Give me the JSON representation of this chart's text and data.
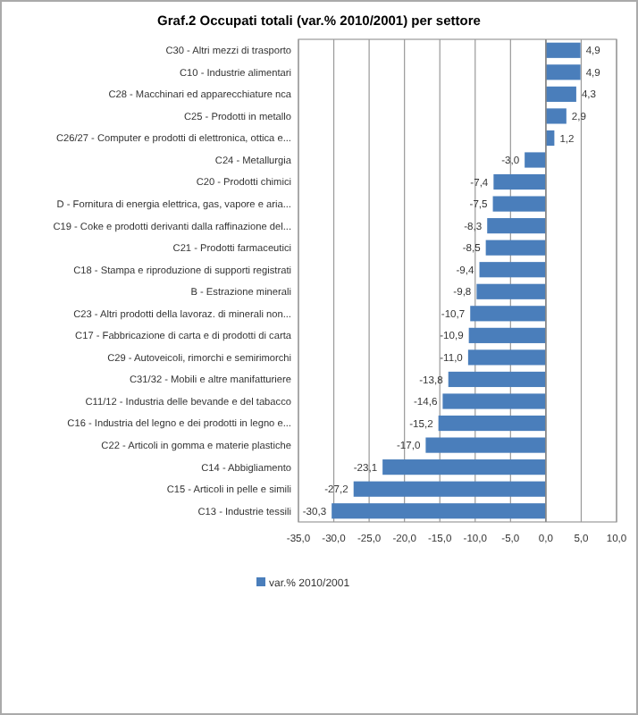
{
  "chart_data": {
    "type": "bar",
    "orientation": "horizontal",
    "title": "Graf.2 Occupati totali (var.% 2010/2001) per settore",
    "categories": [
      "C30 - Altri mezzi di trasporto",
      "C10 - Industrie alimentari",
      "C28 - Macchinari ed apparecchiature nca",
      "C25 - Prodotti in metallo",
      "C26/27 - Computer e prodotti di elettronica, ottica e...",
      "C24 - Metallurgia",
      "C20 - Prodotti chimici",
      "D - Fornitura di energia elettrica, gas, vapore e aria...",
      "C19 - Coke e prodotti derivanti dalla raffinazione del...",
      "C21 - Prodotti farmaceutici",
      "C18 - Stampa e riproduzione di supporti registrati",
      "B - Estrazione minerali",
      "C23 - Altri prodotti della lavoraz. di minerali non...",
      "C17 - Fabbricazione di carta e di prodotti di carta",
      "C29 - Autoveicoli, rimorchi e semirimorchi",
      "C31/32 - Mobili e altre manifatturiere",
      "C11/12 - Industria delle bevande e del tabacco",
      "C16 - Industria del legno e dei prodotti in legno e...",
      "C22 - Articoli in gomma e materie plastiche",
      "C14 - Abbigliamento",
      "C15 - Articoli in pelle e simili",
      "C13 - Industrie tessili"
    ],
    "series": [
      {
        "name": "var.% 2010/2001",
        "color": "#4a7ebb",
        "values": [
          4.9,
          4.9,
          4.3,
          2.9,
          1.2,
          -3.0,
          -7.4,
          -7.5,
          -8.3,
          -8.5,
          -9.4,
          -9.8,
          -10.7,
          -10.9,
          -11.0,
          -13.8,
          -14.6,
          -15.2,
          -17.0,
          -23.1,
          -27.2,
          -30.3
        ],
        "value_labels": [
          "4,9",
          "4,9",
          "4,3",
          "2,9",
          "1,2",
          "-3,0",
          "-7,4",
          "-7,5",
          "-8,3",
          "-8,5",
          "-9,4",
          "-9,8",
          "-10,7",
          "-10,9",
          "-11,0",
          "-13,8",
          "-14,6",
          "-15,2",
          "-17,0",
          "-23,1",
          "-27,2",
          "-30,3"
        ]
      }
    ],
    "xlim": [
      -35,
      10
    ],
    "xticks": [
      {
        "value": -35,
        "label": "-35,0"
      },
      {
        "value": -30,
        "label": "-30,0"
      },
      {
        "value": -25,
        "label": "-25,0"
      },
      {
        "value": -20,
        "label": "-20,0"
      },
      {
        "value": -15,
        "label": "-15,0"
      },
      {
        "value": -10,
        "label": "-10,0"
      },
      {
        "value": -5,
        "label": "-5,0"
      },
      {
        "value": 0,
        "label": "0,0"
      },
      {
        "value": 5,
        "label": "5,0"
      },
      {
        "value": 10,
        "label": "10,0"
      }
    ],
    "grid": "x",
    "legend": "bottom"
  }
}
